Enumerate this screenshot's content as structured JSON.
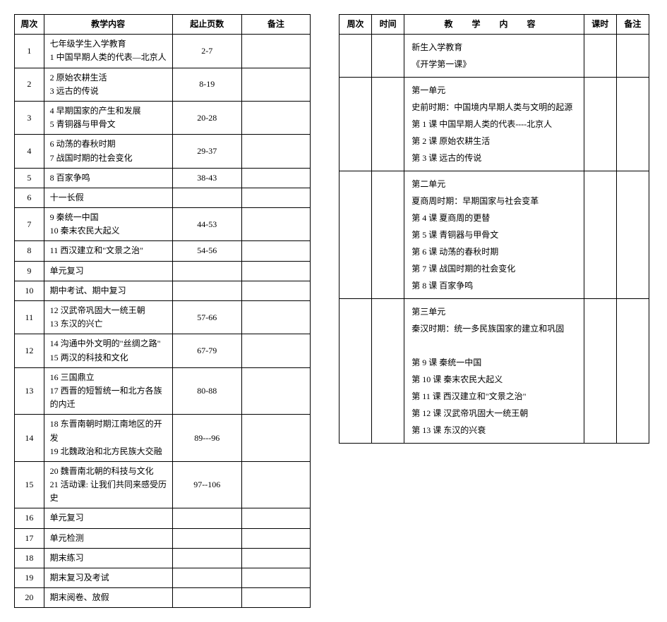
{
  "leftTable": {
    "headers": {
      "week": "周次",
      "content": "教学内容",
      "pages": "起止页数",
      "notes": "备注"
    },
    "rows": [
      {
        "week": "1",
        "content": "七年级学生入学教育\n1 中国早期人类的代表—北京人",
        "pages": "2-7",
        "notes": ""
      },
      {
        "week": "2",
        "content": "2 原始农耕生活\n3 远古的传说",
        "pages": "8-19",
        "notes": ""
      },
      {
        "week": "3",
        "content": "4 早期国家的产生和发展\n5 青铜器与甲骨文",
        "pages": "20-28",
        "notes": ""
      },
      {
        "week": "4",
        "content": "6 动荡的春秋时期\n7 战国时期的社会变化",
        "pages": "29-37",
        "notes": ""
      },
      {
        "week": "5",
        "content": "8 百家争鸣",
        "pages": "38-43",
        "notes": ""
      },
      {
        "week": "6",
        "content": "十一长假",
        "pages": "",
        "notes": ""
      },
      {
        "week": "7",
        "content": "9 秦统一中国\n10 秦末农民大起义",
        "pages": "44-53",
        "notes": ""
      },
      {
        "week": "8",
        "content": "11 西汉建立和\"文景之治\"",
        "pages": "54-56",
        "notes": ""
      },
      {
        "week": "9",
        "content": "单元复习",
        "pages": "",
        "notes": ""
      },
      {
        "week": "10",
        "content": "期中考试、期中复习",
        "pages": "",
        "notes": ""
      },
      {
        "week": "11",
        "content": "12 汉武帝巩固大一统王朝\n13 东汉的兴亡",
        "pages": "57-66",
        "notes": ""
      },
      {
        "week": "12",
        "content": "14 沟通中外文明的\"丝绸之路\"\n15 两汉的科技和文化",
        "pages": "67-79",
        "notes": ""
      },
      {
        "week": "13",
        "content": "16 三国鼎立\n17 西晋的短暂统一和北方各族的内迁",
        "pages": "80-88",
        "notes": ""
      },
      {
        "week": "14",
        "content": "18 东晋南朝时期江南地区的开发\n19 北魏政治和北方民族大交融",
        "pages": "89---96",
        "notes": ""
      },
      {
        "week": "15",
        "content": "20 魏晋南北朝的科技与文化\n21 活动课: 让我们共同来感受历史",
        "pages": "97--106",
        "notes": ""
      },
      {
        "week": "16",
        "content": "单元复习",
        "pages": "",
        "notes": ""
      },
      {
        "week": "17",
        "content": "单元检测",
        "pages": "",
        "notes": ""
      },
      {
        "week": "18",
        "content": "期末练习",
        "pages": "",
        "notes": ""
      },
      {
        "week": "19",
        "content": "期末复习及考试",
        "pages": "",
        "notes": ""
      },
      {
        "week": "20",
        "content": "期末阅卷、放假",
        "pages": "",
        "notes": ""
      }
    ]
  },
  "rightTable": {
    "headers": {
      "week": "周次",
      "time": "时间",
      "content": "教 学 内 容",
      "hours": "课时",
      "notes": "备注"
    },
    "sections": [
      {
        "content": "新生入学教育\n《开学第一课》"
      },
      {
        "content": "第一单元\n史前时期：中国境内早期人类与文明的起源\n第 1 课   中国早期人类的代表----北京人\n第 2 课   原始农耕生活\n第 3 课   远古的传说"
      },
      {
        "content": "第二单元\n夏商周时期：早期国家与社会变革\n第 4 课   夏商周的更替\n第 5 课   青铜器与甲骨文\n第 6 课   动荡的春秋时期\n第 7 课   战国时期的社会变化\n第 8 课   百家争鸣"
      },
      {
        "content": "第三单元\n秦汉时期：统一多民族国家的建立和巩固\n\n第 9 课    秦统一中国\n第 10 课   秦末农民大起义\n第 11 课   西汉建立和\"文景之治\"\n第 12 课   汉武帝巩固大一统王朝\n第 13 课   东汉的兴衰"
      }
    ]
  }
}
